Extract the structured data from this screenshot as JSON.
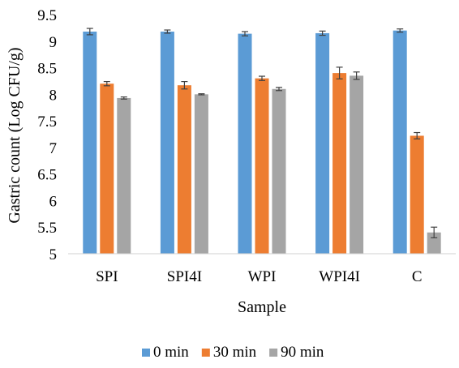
{
  "chart_data": {
    "type": "bar",
    "xlabel": "Sample",
    "ylabel": "Gastric count (Log CFU/g)",
    "ylim": [
      5,
      9.5
    ],
    "yticks": [
      "5",
      "5.5",
      "6",
      "6.5",
      "7",
      "7.5",
      "8",
      "8.5",
      "9",
      "9.5"
    ],
    "categories": [
      "SPI",
      "SPI4I",
      "WPI",
      "WPI4I",
      "C"
    ],
    "grid": false,
    "legend_position": "bottom",
    "series": [
      {
        "name": "0 min",
        "color": "#5B9BD5",
        "values": [
          9.18,
          9.18,
          9.14,
          9.15,
          9.2
        ],
        "errors": [
          0.06,
          0.03,
          0.04,
          0.04,
          0.03
        ]
      },
      {
        "name": "30 min",
        "color": "#ED7D31",
        "values": [
          8.2,
          8.17,
          8.3,
          8.4,
          7.22
        ],
        "errors": [
          0.04,
          0.07,
          0.04,
          0.11,
          0.06
        ]
      },
      {
        "name": "90 min",
        "color": "#A5A5A5",
        "values": [
          7.93,
          8.0,
          8.1,
          8.35,
          5.4
        ],
        "errors": [
          0.02,
          0.01,
          0.03,
          0.07,
          0.1
        ]
      }
    ]
  }
}
